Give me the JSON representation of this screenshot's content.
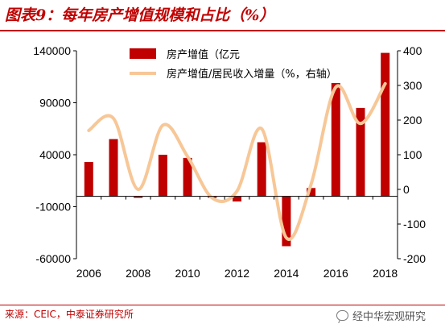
{
  "figure": {
    "title": "图表9：每年房产增值规模和占比（%）",
    "source": "来源：CEIC，中泰证券研究所",
    "watermark": "经中华宏观研究"
  },
  "colors": {
    "bar": "#c00000",
    "line": "#f7c797",
    "title": "#c00000",
    "text": "#000000"
  },
  "chart_data": {
    "type": "bar",
    "title": "",
    "legend_placement": "top",
    "grid": false,
    "x": [
      2006,
      2007,
      2008,
      2009,
      2010,
      2011,
      2012,
      2013,
      2014,
      2015,
      2016,
      2017,
      2018
    ],
    "x_ticks": [
      "2006",
      "2008",
      "2010",
      "2012",
      "2014",
      "2016",
      "2018"
    ],
    "y_left": {
      "min": -60000,
      "max": 140000,
      "ticks": [
        "140000",
        "90000",
        "40000",
        "-10000",
        "-60000"
      ],
      "tick_values": [
        140000,
        90000,
        40000,
        -10000,
        -60000
      ]
    },
    "y_right": {
      "min": -200,
      "max": 400,
      "ticks": [
        "400",
        "300",
        "200",
        "100",
        "0",
        "-100",
        "-200"
      ],
      "tick_values": [
        400,
        300,
        200,
        100,
        0,
        -100,
        -200
      ]
    },
    "series": [
      {
        "name": "房产增值（亿元",
        "type": "bar",
        "axis": "left",
        "values": [
          33000,
          55000,
          -1500,
          40000,
          37000,
          -1500,
          -5000,
          52000,
          -48000,
          8000,
          109000,
          85000,
          138000
        ]
      },
      {
        "name": "房产增值/居民收入增量（%，右轴）",
        "type": "line",
        "axis": "right",
        "values": [
          170,
          205,
          0,
          185,
          95,
          -25,
          -5,
          175,
          -140,
          15,
          295,
          190,
          305
        ]
      }
    ]
  }
}
